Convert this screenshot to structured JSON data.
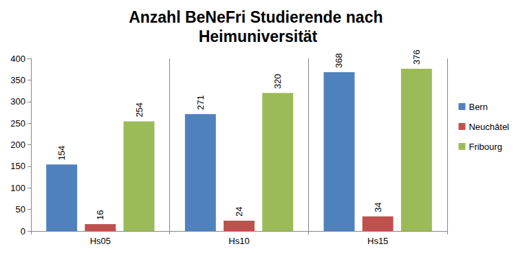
{
  "chart_data": {
    "type": "bar",
    "title": "Anzahl BeNeFri Studierende nach Heimuniversität",
    "categories": [
      "Hs05",
      "Hs10",
      "Hs15"
    ],
    "series": [
      {
        "name": "Bern",
        "color": "#4f81bd",
        "values": [
          154,
          271,
          368
        ]
      },
      {
        "name": "Neuchâtel",
        "color": "#c0504d",
        "values": [
          16,
          24,
          34
        ]
      },
      {
        "name": "Fribourg",
        "color": "#9bbb59",
        "values": [
          254,
          320,
          376
        ]
      }
    ],
    "ylim": [
      0,
      400
    ],
    "yticks": [
      0,
      50,
      100,
      150,
      200,
      250,
      300,
      350,
      400
    ],
    "grid": false,
    "legend": "right",
    "data_labels": true
  }
}
